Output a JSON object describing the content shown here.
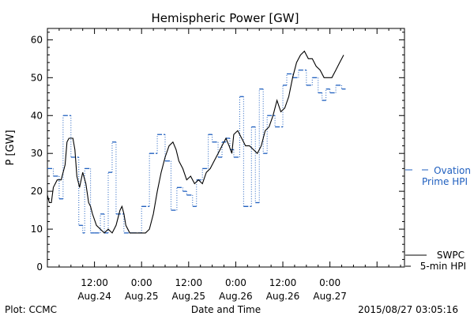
{
  "chart_data": {
    "type": "line",
    "title": "Hemispheric Power [GW]",
    "xlabel": "Date and Time",
    "ylabel": "P [GW]",
    "ylim": [
      0,
      63
    ],
    "yticks": [
      0,
      10,
      20,
      30,
      40,
      50,
      60
    ],
    "xlim": [
      0,
      91
    ],
    "xticks": [
      {
        "x": 12,
        "time": "12:00",
        "date": "Aug.24"
      },
      {
        "x": 24,
        "time": "0:00",
        "date": "Aug.25"
      },
      {
        "x": 36,
        "time": "12:00",
        "date": "Aug.25"
      },
      {
        "x": 48,
        "time": "0:00",
        "date": "Aug.26"
      },
      {
        "x": 60,
        "time": "12:00",
        "date": "Aug.26"
      },
      {
        "x": 72,
        "time": "0:00",
        "date": "Aug.27"
      }
    ],
    "x_unit": "hours since 2015-08-24 00:00",
    "grid": false,
    "legend": "right",
    "series": [
      {
        "name": "SWPC 5-min HPI",
        "label_lines": [
          "SWPC",
          "5-min HPI"
        ],
        "color": "#000000",
        "style": "solid",
        "points": [
          [
            0,
            19
          ],
          [
            0.5,
            17
          ],
          [
            1,
            17
          ],
          [
            1.5,
            21
          ],
          [
            2.5,
            23
          ],
          [
            3.5,
            23
          ],
          [
            4.5,
            27
          ],
          [
            5,
            33
          ],
          [
            5.5,
            34
          ],
          [
            6.5,
            34
          ],
          [
            7,
            31
          ],
          [
            7.5,
            24
          ],
          [
            8.2,
            21
          ],
          [
            9,
            25
          ],
          [
            9.8,
            22
          ],
          [
            10.5,
            17
          ],
          [
            11,
            16
          ],
          [
            11.5,
            14
          ],
          [
            12.5,
            11
          ],
          [
            13.5,
            10
          ],
          [
            14.5,
            9
          ],
          [
            15.5,
            10
          ],
          [
            16.5,
            9
          ],
          [
            17.5,
            11
          ],
          [
            18,
            13
          ],
          [
            18.5,
            15
          ],
          [
            19,
            16
          ],
          [
            19.5,
            14
          ],
          [
            20,
            11
          ],
          [
            21,
            9
          ],
          [
            22,
            9
          ],
          [
            23,
            9
          ],
          [
            24,
            9
          ],
          [
            25,
            9
          ],
          [
            26,
            10
          ],
          [
            27,
            14
          ],
          [
            28,
            20
          ],
          [
            29,
            25
          ],
          [
            30,
            29
          ],
          [
            31,
            32
          ],
          [
            32,
            33
          ],
          [
            32.8,
            31
          ],
          [
            33.5,
            28
          ],
          [
            34.5,
            26
          ],
          [
            35.5,
            23
          ],
          [
            36.5,
            24
          ],
          [
            37.5,
            22
          ],
          [
            38.5,
            23
          ],
          [
            39.5,
            22
          ],
          [
            40.5,
            25
          ],
          [
            41.5,
            26
          ],
          [
            42.5,
            28
          ],
          [
            43.5,
            30
          ],
          [
            44.5,
            32
          ],
          [
            45.5,
            34
          ],
          [
            46.3,
            32
          ],
          [
            47,
            30
          ],
          [
            47.5,
            35
          ],
          [
            48.5,
            36
          ],
          [
            49.5,
            34
          ],
          [
            50.5,
            32
          ],
          [
            51.5,
            32
          ],
          [
            52.5,
            31
          ],
          [
            53.5,
            30
          ],
          [
            54.5,
            32
          ],
          [
            55.5,
            36
          ],
          [
            56.5,
            37
          ],
          [
            57.5,
            40
          ],
          [
            58.5,
            44
          ],
          [
            59.5,
            41
          ],
          [
            60.5,
            42
          ],
          [
            61.5,
            45
          ],
          [
            62.5,
            50
          ],
          [
            63.5,
            54
          ],
          [
            64.5,
            56
          ],
          [
            65.5,
            57
          ],
          [
            66.5,
            55
          ],
          [
            67.5,
            55
          ],
          [
            68.5,
            53
          ],
          [
            69.5,
            52
          ],
          [
            70.5,
            50
          ],
          [
            71.5,
            50
          ],
          [
            72.5,
            50
          ],
          [
            73.5,
            52
          ],
          [
            74.5,
            54
          ],
          [
            75.5,
            56
          ]
        ]
      },
      {
        "name": "Ovation Prime HPI",
        "label_lines": [
          "Ovation",
          "Prime HPI"
        ],
        "color": "#1f5fbf",
        "style": "dashed-step",
        "steps": [
          [
            0,
            1.5,
            26
          ],
          [
            1.5,
            3,
            24
          ],
          [
            3,
            4,
            18
          ],
          [
            4,
            6,
            40
          ],
          [
            6,
            8,
            29
          ],
          [
            8,
            9,
            11
          ],
          [
            9,
            9.5,
            9
          ],
          [
            9.5,
            11,
            26
          ],
          [
            11,
            12,
            9
          ],
          [
            12,
            13.5,
            9
          ],
          [
            13.5,
            14.5,
            14
          ],
          [
            14.5,
            15.5,
            9
          ],
          [
            15.5,
            16.5,
            25
          ],
          [
            16.5,
            17.5,
            33
          ],
          [
            17.5,
            19.5,
            14
          ],
          [
            19.5,
            21.5,
            9
          ],
          [
            21.5,
            24,
            9
          ],
          [
            24,
            26,
            16
          ],
          [
            26,
            28,
            30
          ],
          [
            28,
            30,
            35
          ],
          [
            30,
            31.5,
            28
          ],
          [
            31.5,
            33,
            15
          ],
          [
            33,
            34.5,
            21
          ],
          [
            34.5,
            35.5,
            20
          ],
          [
            35.5,
            37,
            19
          ],
          [
            37,
            38,
            16
          ],
          [
            38,
            39.5,
            23
          ],
          [
            39.5,
            41,
            26
          ],
          [
            41,
            42,
            35
          ],
          [
            42,
            43.5,
            33
          ],
          [
            43.5,
            44.5,
            29
          ],
          [
            44.5,
            45.5,
            33
          ],
          [
            45.5,
            46.5,
            34
          ],
          [
            46.5,
            47.5,
            31
          ],
          [
            47.5,
            49,
            29
          ],
          [
            49,
            50,
            45
          ],
          [
            50,
            52,
            16
          ],
          [
            52,
            53,
            37
          ],
          [
            53,
            54,
            17
          ],
          [
            54,
            55,
            47
          ],
          [
            55,
            56,
            30
          ],
          [
            56,
            58,
            40
          ],
          [
            58,
            60,
            37
          ],
          [
            60,
            61,
            48
          ],
          [
            61,
            62.5,
            51
          ],
          [
            62.5,
            64,
            50
          ],
          [
            64,
            66,
            52
          ],
          [
            66,
            67.5,
            48
          ],
          [
            67.5,
            69,
            50
          ],
          [
            69,
            70,
            46
          ],
          [
            70,
            71,
            44
          ],
          [
            71,
            72,
            47
          ],
          [
            72,
            73.5,
            46
          ],
          [
            73.5,
            75,
            48
          ],
          [
            75,
            76,
            47
          ]
        ]
      }
    ]
  },
  "footer": {
    "left": "Plot: CCMC",
    "right": "2015/08/27 03:05:16"
  }
}
